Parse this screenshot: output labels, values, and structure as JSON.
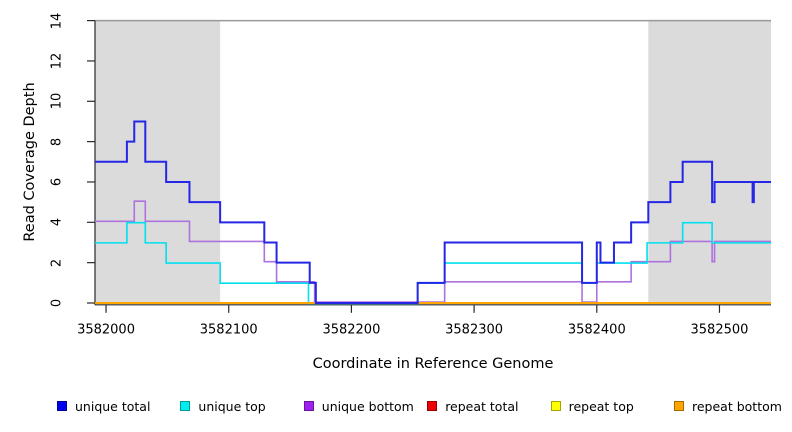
{
  "chart_data": {
    "type": "line",
    "step": "after",
    "title": "",
    "xlabel": "Coordinate in Reference Genome",
    "ylabel": "Read Coverage Depth",
    "xlim": [
      3581991,
      3582542
    ],
    "ylim": [
      0,
      14
    ],
    "grid": false,
    "reference_line": {
      "y": 14,
      "color": "#999999"
    },
    "shaded_regions": [
      {
        "x0": 3581991,
        "x1": 3582093,
        "color": "#dbdbdb"
      },
      {
        "x0": 3582442,
        "x1": 3582542,
        "color": "#dbdbdb"
      }
    ],
    "x_axis": {
      "ticks": [
        3582000,
        3582100,
        3582200,
        3582300,
        3582400,
        3582500
      ],
      "tick_labels": [
        "3582000",
        "3582100",
        "3582200",
        "3582300",
        "3582400",
        "3582500"
      ]
    },
    "y_axis": {
      "ticks": [
        0,
        2,
        4,
        6,
        8,
        10,
        12,
        14
      ],
      "tick_labels": [
        "0",
        "2",
        "4",
        "6",
        "8",
        "10",
        "12",
        "14"
      ]
    },
    "series": [
      {
        "name": "repeat total",
        "color": "#dd0000",
        "width": 1.5,
        "yoffset": 0,
        "points": [
          [
            3581991,
            0
          ]
        ]
      },
      {
        "name": "repeat top",
        "color": "#eeee00",
        "width": 1.5,
        "yoffset": 0,
        "points": [
          [
            3581991,
            0
          ]
        ]
      },
      {
        "name": "unique bottom",
        "color": "#ae72df",
        "width": 1.6,
        "yoffset": -1.0,
        "points": [
          [
            3581991,
            4
          ],
          [
            3582023,
            5
          ],
          [
            3582032,
            4
          ],
          [
            3582068,
            3
          ],
          [
            3582129,
            2
          ],
          [
            3582139,
            1
          ],
          [
            3582170,
            0
          ],
          [
            3582276,
            1
          ],
          [
            3582388,
            0
          ],
          [
            3582400,
            1
          ],
          [
            3582428,
            2
          ],
          [
            3582460,
            3
          ],
          [
            3582494,
            2
          ],
          [
            3582496,
            3
          ]
        ]
      },
      {
        "name": "unique top",
        "color": "#00e0ee",
        "width": 1.6,
        "yoffset": 0.4,
        "points": [
          [
            3581991,
            3
          ],
          [
            3582017,
            4
          ],
          [
            3582032,
            3
          ],
          [
            3582049,
            2
          ],
          [
            3582093,
            1
          ],
          [
            3582165,
            0
          ],
          [
            3582254,
            1
          ],
          [
            3582276,
            2
          ],
          [
            3582388,
            1
          ],
          [
            3582400,
            2
          ],
          [
            3582441,
            3
          ],
          [
            3582470,
            4
          ],
          [
            3582494,
            3
          ]
        ]
      },
      {
        "name": "repeat bottom",
        "color": "#ffa500",
        "width": 2.0,
        "yoffset": 0,
        "points": [
          [
            3581991,
            0
          ]
        ]
      },
      {
        "name": "unique total",
        "color": "#2626e6",
        "width": 2.0,
        "yoffset": 0,
        "points": [
          [
            3581991,
            7
          ],
          [
            3582017,
            8
          ],
          [
            3582023,
            9
          ],
          [
            3582032,
            7
          ],
          [
            3582049,
            6
          ],
          [
            3582068,
            5
          ],
          [
            3582093,
            4
          ],
          [
            3582129,
            3
          ],
          [
            3582139,
            2
          ],
          [
            3582166,
            1
          ],
          [
            3582171,
            0
          ],
          [
            3582254,
            1
          ],
          [
            3582276,
            3
          ],
          [
            3582388,
            1
          ],
          [
            3582400,
            3
          ],
          [
            3582403,
            2
          ],
          [
            3582414,
            3
          ],
          [
            3582428,
            4
          ],
          [
            3582442,
            5
          ],
          [
            3582460,
            6
          ],
          [
            3582470,
            7
          ],
          [
            3582494,
            5
          ],
          [
            3582496,
            6
          ],
          [
            3582527,
            5
          ],
          [
            3582528,
            6
          ]
        ]
      }
    ],
    "legend": {
      "position": "bottom",
      "items": [
        {
          "label": "unique total",
          "color": "#0000ee"
        },
        {
          "label": "unique top",
          "color": "#00eeee"
        },
        {
          "label": "unique bottom",
          "color": "#a020f0"
        },
        {
          "label": "repeat total",
          "color": "#ee0000"
        },
        {
          "label": "repeat top",
          "color": "#ffff00"
        },
        {
          "label": "repeat bottom",
          "color": "#ffa500"
        }
      ]
    }
  }
}
